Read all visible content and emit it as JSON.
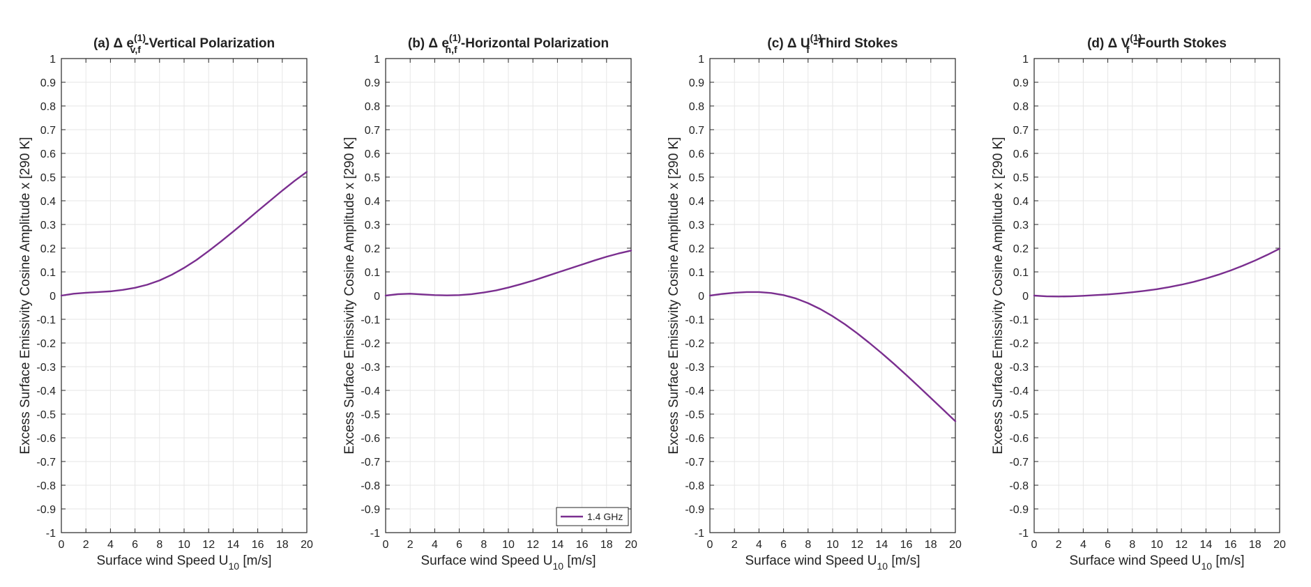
{
  "style": {
    "line_color": "#7a2e8f",
    "grid_color": "#e6e6e6",
    "axis_color": "#262626"
  },
  "legend": {
    "label": "1.4 GHz",
    "panel": 1,
    "position": "bottom-right"
  },
  "chart_data": [
    {
      "type": "line",
      "title": {
        "prefix": "(a) Δ e",
        "sup": "(1)",
        "sub": "v,f",
        "suffix": " -Vertical Polarization"
      },
      "xlabel": {
        "main": "Surface wind Speed U",
        "sub": "10",
        "unit": " [m/s]"
      },
      "ylabel": "Excess Surface Emissivity Cosine Amplitude x [290 K]",
      "xlim": [
        0,
        20
      ],
      "ylim": [
        -1,
        1
      ],
      "xticks": [
        "0",
        "2",
        "4",
        "6",
        "8",
        "10",
        "12",
        "14",
        "16",
        "18",
        "20"
      ],
      "yticks": [
        "1",
        "0.9",
        "0.8",
        "0.7",
        "0.6",
        "0.5",
        "0.4",
        "0.3",
        "0.2",
        "0.1",
        "0",
        "-0.1",
        "-0.2",
        "-0.3",
        "-0.4",
        "-0.5",
        "-0.6",
        "-0.7",
        "-0.8",
        "-0.9",
        "-1"
      ],
      "grid": true,
      "series": [
        {
          "name": "1.4 GHz",
          "x": [
            0,
            1,
            2,
            3,
            4,
            5,
            6,
            7,
            8,
            9,
            10,
            11,
            12,
            13,
            14,
            15,
            16,
            17,
            18,
            19,
            20
          ],
          "y": [
            0,
            0.008,
            0.012,
            0.015,
            0.018,
            0.024,
            0.033,
            0.046,
            0.064,
            0.088,
            0.117,
            0.15,
            0.188,
            0.228,
            0.27,
            0.313,
            0.357,
            0.4,
            0.443,
            0.484,
            0.522
          ]
        }
      ]
    },
    {
      "type": "line",
      "title": {
        "prefix": "(b) Δ e",
        "sup": "(1)",
        "sub": "h,f",
        "suffix": " -Horizontal Polarization"
      },
      "xlabel": {
        "main": "Surface wind Speed U",
        "sub": "10",
        "unit": " [m/s]"
      },
      "ylabel": "Excess Surface Emissivity Cosine Amplitude x [290 K]",
      "xlim": [
        0,
        20
      ],
      "ylim": [
        -1,
        1
      ],
      "xticks": [
        "0",
        "2",
        "4",
        "6",
        "8",
        "10",
        "12",
        "14",
        "16",
        "18",
        "20"
      ],
      "yticks": [
        "1",
        "0.9",
        "0.8",
        "0.7",
        "0.6",
        "0.5",
        "0.4",
        "0.3",
        "0.2",
        "0.1",
        "0",
        "-0.1",
        "-0.2",
        "-0.3",
        "-0.4",
        "-0.5",
        "-0.6",
        "-0.7",
        "-0.8",
        "-0.9",
        "-1"
      ],
      "grid": true,
      "series": [
        {
          "name": "1.4 GHz",
          "x": [
            0,
            1,
            2,
            3,
            4,
            5,
            6,
            7,
            8,
            9,
            10,
            11,
            12,
            13,
            14,
            15,
            16,
            17,
            18,
            19,
            20
          ],
          "y": [
            0,
            0.006,
            0.008,
            0.005,
            0.002,
            0.001,
            0.002,
            0.006,
            0.013,
            0.022,
            0.034,
            0.048,
            0.063,
            0.08,
            0.097,
            0.114,
            0.131,
            0.148,
            0.164,
            0.178,
            0.19
          ]
        }
      ]
    },
    {
      "type": "line",
      "title": {
        "prefix": "(c) Δ U",
        "sup": "(1)",
        "sub": "f",
        "suffix": " -Third Stokes"
      },
      "xlabel": {
        "main": "Surface wind Speed U",
        "sub": "10",
        "unit": " [m/s]"
      },
      "ylabel": "Excess Surface Emissivity Cosine Amplitude x [290 K]",
      "xlim": [
        0,
        20
      ],
      "ylim": [
        -1,
        1
      ],
      "xticks": [
        "0",
        "2",
        "4",
        "6",
        "8",
        "10",
        "12",
        "14",
        "16",
        "18",
        "20"
      ],
      "yticks": [
        "1",
        "0.9",
        "0.8",
        "0.7",
        "0.6",
        "0.5",
        "0.4",
        "0.3",
        "0.2",
        "0.1",
        "0",
        "-0.1",
        "-0.2",
        "-0.3",
        "-0.4",
        "-0.5",
        "-0.6",
        "-0.7",
        "-0.8",
        "-0.9",
        "-1"
      ],
      "grid": true,
      "series": [
        {
          "name": "1.4 GHz",
          "x": [
            0,
            1,
            2,
            3,
            4,
            5,
            6,
            7,
            8,
            9,
            10,
            11,
            12,
            13,
            14,
            15,
            16,
            17,
            18,
            19,
            20
          ],
          "y": [
            0,
            0.007,
            0.012,
            0.015,
            0.015,
            0.011,
            0.002,
            -0.012,
            -0.032,
            -0.057,
            -0.087,
            -0.121,
            -0.159,
            -0.2,
            -0.243,
            -0.288,
            -0.335,
            -0.383,
            -0.432,
            -0.481,
            -0.53
          ]
        }
      ]
    },
    {
      "type": "line",
      "title": {
        "prefix": "(d) Δ V",
        "sup": "(1)",
        "sub": "f",
        "suffix": " -Fourth Stokes"
      },
      "xlabel": {
        "main": "Surface wind Speed U",
        "sub": "10",
        "unit": " [m/s]"
      },
      "ylabel": "Excess Surface Emissivity Cosine Amplitude x [290 K]",
      "xlim": [
        0,
        20
      ],
      "ylim": [
        -1,
        1
      ],
      "xticks": [
        "0",
        "2",
        "4",
        "6",
        "8",
        "10",
        "12",
        "14",
        "16",
        "18",
        "20"
      ],
      "yticks": [
        "1",
        "0.9",
        "0.8",
        "0.7",
        "0.6",
        "0.5",
        "0.4",
        "0.3",
        "0.2",
        "0.1",
        "0",
        "-0.1",
        "-0.2",
        "-0.3",
        "-0.4",
        "-0.5",
        "-0.6",
        "-0.7",
        "-0.8",
        "-0.9",
        "-1"
      ],
      "grid": true,
      "series": [
        {
          "name": "1.4 GHz",
          "x": [
            0,
            1,
            2,
            3,
            4,
            5,
            6,
            7,
            8,
            9,
            10,
            11,
            12,
            13,
            14,
            15,
            16,
            17,
            18,
            19,
            20
          ],
          "y": [
            0,
            -0.003,
            -0.004,
            -0.003,
            -0.001,
            0.002,
            0.005,
            0.009,
            0.014,
            0.02,
            0.027,
            0.036,
            0.046,
            0.058,
            0.072,
            0.088,
            0.106,
            0.126,
            0.148,
            0.172,
            0.198
          ]
        }
      ]
    }
  ]
}
